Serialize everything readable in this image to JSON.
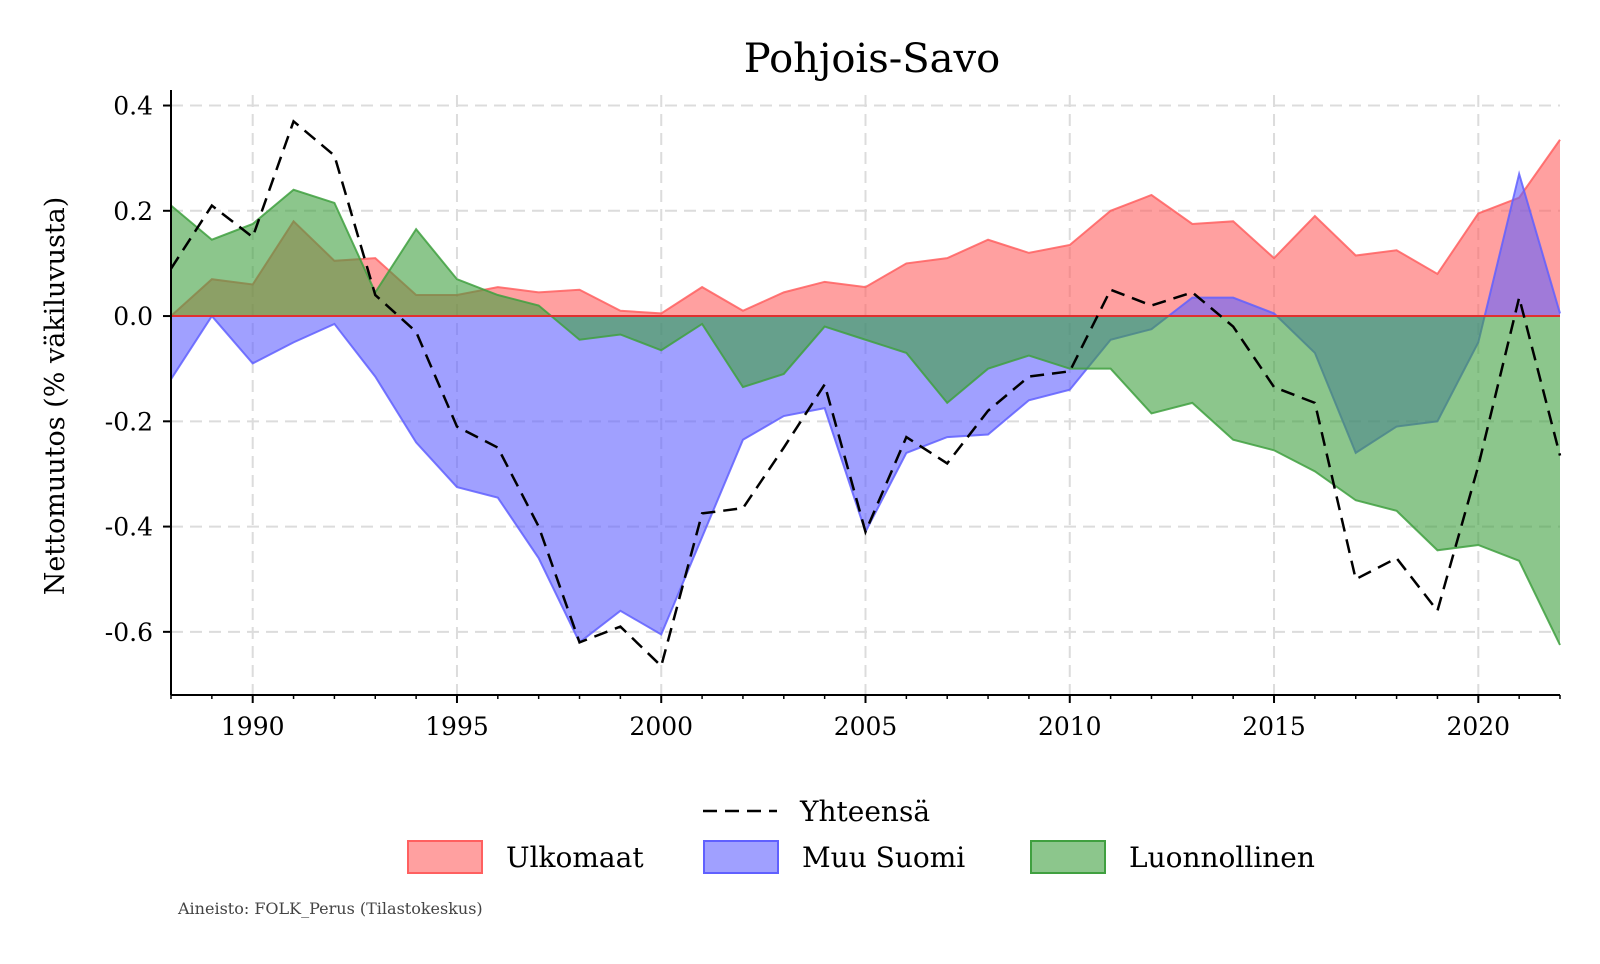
{
  "chart_data": {
    "type": "area",
    "title": "Pohjois-Savo",
    "ylabel": "Nettomuutos (% väkiluvusta)",
    "xlabel": "",
    "xlim": [
      1988,
      2022
    ],
    "ylim": [
      -0.72,
      0.42
    ],
    "grid": true,
    "legend_position": "bottom",
    "x_ticks": [
      "1990",
      "1995",
      "2000",
      "2005",
      "2010",
      "2015",
      "2020"
    ],
    "y_ticks": [
      "0.4",
      "0.2",
      "0.0",
      "-0.2",
      "-0.4",
      "-0.6"
    ],
    "x": [
      1988,
      1989,
      1990,
      1991,
      1992,
      1993,
      1994,
      1995,
      1996,
      1997,
      1998,
      1999,
      2000,
      2001,
      2002,
      2003,
      2004,
      2005,
      2006,
      2007,
      2008,
      2009,
      2010,
      2011,
      2012,
      2013,
      2014,
      2015,
      2016,
      2017,
      2018,
      2019,
      2020,
      2021,
      2022
    ],
    "series": [
      {
        "name": "Ulkomaat",
        "type": "area",
        "color": "#ff6060",
        "values": [
          0.0,
          0.07,
          0.06,
          0.18,
          0.105,
          0.11,
          0.04,
          0.04,
          0.055,
          0.045,
          0.05,
          0.01,
          0.005,
          0.055,
          0.01,
          0.045,
          0.065,
          0.055,
          0.1,
          0.11,
          0.145,
          0.12,
          0.135,
          0.2,
          0.23,
          0.175,
          0.18,
          0.11,
          0.19,
          0.115,
          0.125,
          0.08,
          0.195,
          0.225,
          0.335
        ]
      },
      {
        "name": "Muu Suomi",
        "type": "area",
        "color": "#6060ff",
        "values": [
          -0.12,
          0.0,
          -0.09,
          -0.05,
          -0.015,
          -0.115,
          -0.24,
          -0.325,
          -0.345,
          -0.46,
          -0.62,
          -0.56,
          -0.605,
          -0.42,
          -0.235,
          -0.19,
          -0.175,
          -0.41,
          -0.26,
          -0.23,
          -0.225,
          -0.16,
          -0.14,
          -0.045,
          -0.025,
          0.035,
          0.035,
          0.005,
          -0.07,
          -0.26,
          -0.21,
          -0.2,
          -0.05,
          0.27,
          0.005
        ]
      },
      {
        "name": "Luonnollinen",
        "type": "area",
        "color": "#40a040",
        "values": [
          0.21,
          0.145,
          0.175,
          0.24,
          0.215,
          0.045,
          0.165,
          0.07,
          0.04,
          0.02,
          -0.045,
          -0.035,
          -0.065,
          -0.015,
          -0.135,
          -0.11,
          -0.02,
          -0.045,
          -0.07,
          -0.165,
          -0.1,
          -0.075,
          -0.1,
          -0.1,
          -0.185,
          -0.165,
          -0.235,
          -0.255,
          -0.295,
          -0.35,
          -0.37,
          -0.445,
          -0.435,
          -0.465,
          -0.625
        ]
      },
      {
        "name": "Yhteensä",
        "type": "line",
        "style": "dashed",
        "color": "#000000",
        "values": [
          0.09,
          0.21,
          0.15,
          0.37,
          0.305,
          0.04,
          -0.03,
          -0.21,
          -0.25,
          -0.4,
          -0.62,
          -0.59,
          -0.665,
          -0.375,
          -0.365,
          -0.25,
          -0.13,
          -0.41,
          -0.23,
          -0.28,
          -0.18,
          -0.115,
          -0.105,
          0.05,
          0.02,
          0.045,
          -0.02,
          -0.135,
          -0.165,
          -0.5,
          -0.46,
          -0.56,
          -0.285,
          0.035,
          -0.265
        ]
      }
    ],
    "legend": {
      "line_entry": "Yhteensä",
      "area_entries": [
        "Ulkomaat",
        "Muu Suomi",
        "Luonnollinen"
      ]
    },
    "source_note": "Aineisto: FOLK_Perus (Tilastokeskus)"
  }
}
